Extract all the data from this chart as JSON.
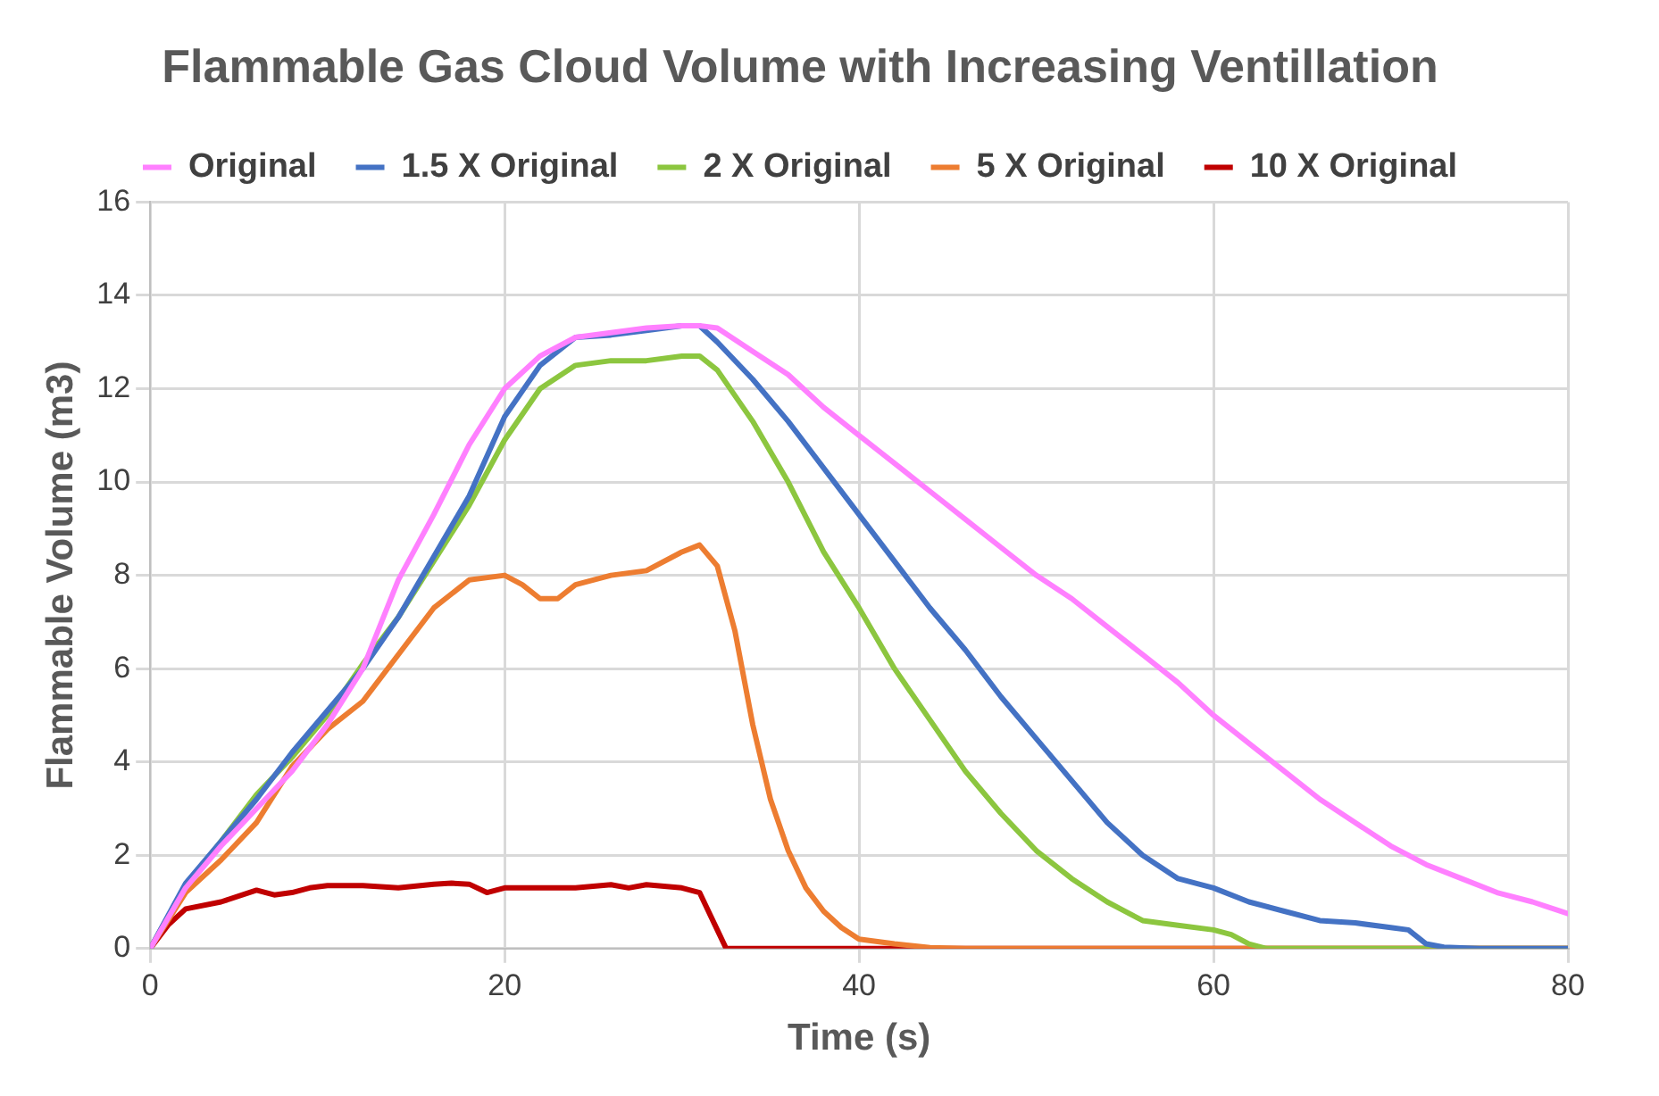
{
  "chart_data": {
    "type": "line",
    "title": "Flammable Gas Cloud Volume with Increasing Ventillation",
    "xlabel": "Time (s)",
    "ylabel": "Flammable Volume (m3)",
    "xlim": [
      0,
      80
    ],
    "xticks": [
      0,
      20,
      40,
      60,
      80
    ],
    "ylim": [
      0,
      16
    ],
    "yticks": [
      0,
      2,
      4,
      6,
      8,
      10,
      12,
      14,
      16
    ],
    "grid": true,
    "legend": "top",
    "marker": "none",
    "line_style": "solid",
    "series": [
      {
        "name": "Original",
        "color": "#ff80ff",
        "x": [
          0,
          2,
          4,
          6,
          8,
          10,
          12,
          14,
          16,
          18,
          20,
          22,
          24,
          26,
          28,
          30,
          31,
          32,
          34,
          36,
          38,
          40,
          42,
          44,
          46,
          48,
          50,
          52,
          54,
          56,
          58,
          60,
          62,
          64,
          66,
          68,
          70,
          72,
          74,
          76,
          78,
          80
        ],
        "values": [
          0,
          1.3,
          2.2,
          3.0,
          3.8,
          4.8,
          6.0,
          7.9,
          9.3,
          10.8,
          12.0,
          12.7,
          13.1,
          13.2,
          13.3,
          13.35,
          13.35,
          13.3,
          12.8,
          12.3,
          11.6,
          11.0,
          10.4,
          9.8,
          9.2,
          8.6,
          8.0,
          7.5,
          6.9,
          6.3,
          5.7,
          5.0,
          4.4,
          3.8,
          3.2,
          2.7,
          2.2,
          1.8,
          1.5,
          1.2,
          1.0,
          0.75
        ]
      },
      {
        "name": "1.5 X Original",
        "color": "#4472c4",
        "x": [
          0,
          2,
          4,
          6,
          8,
          10,
          12,
          14,
          16,
          18,
          20,
          22,
          24,
          26,
          28,
          30,
          31,
          32,
          34,
          36,
          38,
          40,
          42,
          44,
          46,
          48,
          50,
          52,
          54,
          56,
          58,
          60,
          62,
          64,
          66,
          68,
          70,
          71,
          72,
          73,
          75,
          80
        ],
        "values": [
          0,
          1.4,
          2.3,
          3.2,
          4.2,
          5.1,
          6.0,
          7.1,
          8.4,
          9.7,
          11.4,
          12.5,
          13.1,
          13.15,
          13.25,
          13.35,
          13.35,
          13.0,
          12.2,
          11.3,
          10.3,
          9.3,
          8.3,
          7.3,
          6.4,
          5.4,
          4.5,
          3.6,
          2.7,
          2.0,
          1.5,
          1.3,
          1.0,
          0.8,
          0.6,
          0.55,
          0.45,
          0.4,
          0.1,
          0.03,
          0,
          0
        ]
      },
      {
        "name": "2 X Original",
        "color": "#8cc63f",
        "x": [
          0,
          2,
          4,
          6,
          8,
          10,
          12,
          14,
          16,
          18,
          20,
          22,
          24,
          26,
          28,
          30,
          31,
          32,
          34,
          36,
          38,
          40,
          42,
          44,
          46,
          48,
          50,
          52,
          54,
          56,
          58,
          60,
          61,
          62,
          63,
          80
        ],
        "values": [
          0,
          1.35,
          2.3,
          3.3,
          4.1,
          5.0,
          6.1,
          7.1,
          8.3,
          9.5,
          10.9,
          12.0,
          12.5,
          12.6,
          12.6,
          12.7,
          12.7,
          12.4,
          11.3,
          10.0,
          8.5,
          7.3,
          6.0,
          4.9,
          3.8,
          2.9,
          2.1,
          1.5,
          1.0,
          0.6,
          0.5,
          0.4,
          0.3,
          0.1,
          0,
          0
        ]
      },
      {
        "name": "5 X Original",
        "color": "#ed7d31",
        "x": [
          0,
          2,
          4,
          6,
          8,
          10,
          12,
          14,
          16,
          18,
          20,
          21,
          22,
          23,
          24,
          26,
          28,
          30,
          31,
          32,
          33,
          34,
          35,
          36,
          37,
          38,
          39,
          40,
          42,
          44,
          46,
          80
        ],
        "values": [
          0,
          1.2,
          1.9,
          2.7,
          3.9,
          4.7,
          5.3,
          6.3,
          7.3,
          7.9,
          8.0,
          7.8,
          7.5,
          7.5,
          7.8,
          8.0,
          8.1,
          8.5,
          8.65,
          8.2,
          6.8,
          4.8,
          3.2,
          2.1,
          1.3,
          0.8,
          0.45,
          0.2,
          0.1,
          0.02,
          0,
          0
        ]
      },
      {
        "name": "10 X Original",
        "color": "#c00000",
        "x": [
          0,
          1,
          2,
          4,
          6,
          7,
          8,
          9,
          10,
          12,
          14,
          16,
          17,
          18,
          19,
          20,
          22,
          24,
          26,
          27,
          28,
          30,
          31,
          32,
          32.5,
          80
        ],
        "values": [
          0,
          0.5,
          0.85,
          1.0,
          1.25,
          1.15,
          1.2,
          1.3,
          1.35,
          1.35,
          1.3,
          1.38,
          1.4,
          1.38,
          1.2,
          1.3,
          1.3,
          1.3,
          1.37,
          1.3,
          1.37,
          1.3,
          1.2,
          0.4,
          0,
          0
        ]
      }
    ]
  }
}
